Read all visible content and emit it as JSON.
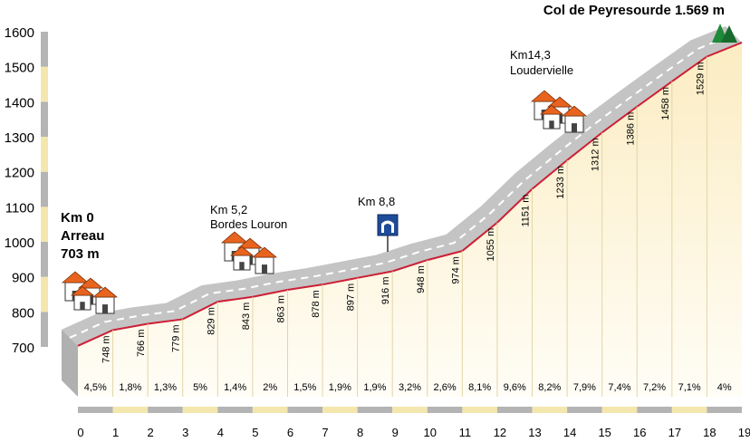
{
  "chart_data": {
    "type": "area",
    "title": "Col de Peyresourde 1.569 m",
    "ylim": [
      700,
      1600
    ],
    "yticks": [
      700,
      800,
      900,
      1000,
      1100,
      1200,
      1300,
      1400,
      1500,
      1600
    ],
    "xlim": [
      0,
      19
    ],
    "xticks": [
      0,
      1,
      2,
      3,
      4,
      5,
      6,
      7,
      8,
      9,
      10,
      11,
      12,
      13,
      14,
      15,
      16,
      17,
      18,
      19
    ],
    "profile": [
      {
        "km": 0,
        "alt": 703
      },
      {
        "km": 1,
        "alt": 748
      },
      {
        "km": 2,
        "alt": 766
      },
      {
        "km": 3,
        "alt": 779
      },
      {
        "km": 4,
        "alt": 829
      },
      {
        "km": 5,
        "alt": 843
      },
      {
        "km": 6,
        "alt": 863
      },
      {
        "km": 7,
        "alt": 878
      },
      {
        "km": 8,
        "alt": 897
      },
      {
        "km": 9,
        "alt": 916
      },
      {
        "km": 10,
        "alt": 948
      },
      {
        "km": 11,
        "alt": 974
      },
      {
        "km": 12,
        "alt": 1055
      },
      {
        "km": 13,
        "alt": 1151
      },
      {
        "km": 14,
        "alt": 1233
      },
      {
        "km": 15,
        "alt": 1312
      },
      {
        "km": 16,
        "alt": 1386
      },
      {
        "km": 17,
        "alt": 1458
      },
      {
        "km": 18,
        "alt": 1529
      },
      {
        "km": 19,
        "alt": 1569
      }
    ],
    "elevation_labels": [
      "748 m",
      "766 m",
      "779 m",
      "829 m",
      "843 m",
      "863 m",
      "878 m",
      "897 m",
      "916 m",
      "948 m",
      "974 m",
      "1055 m",
      "1151 m",
      "1233 m",
      "1312 m",
      "1386 m",
      "1458 m",
      "1529 m"
    ],
    "gradients": [
      "4,5%",
      "1,8%",
      "1,3%",
      "5%",
      "1,4%",
      "2%",
      "1,5%",
      "1,9%",
      "1,9%",
      "3,2%",
      "2,6%",
      "8,1%",
      "9,6%",
      "8,2%",
      "7,9%",
      "7,4%",
      "7,2%",
      "7,1%",
      "4%"
    ],
    "annotations": {
      "start_km": "Km 0",
      "start_name": "Arreau",
      "start_alt": "703 m",
      "bordes_km": "Km 5,2",
      "bordes_name": "Bordes Louron",
      "tunnel_km": "Km 8,8",
      "louder_km": "Km14,3",
      "louder_name": "Loudervielle",
      "summit": "Col de Peyresourde 1.569 m"
    },
    "colors": {
      "profile_line": "#cc1f36",
      "fill_top": "#fbecc2",
      "fill_bottom": "#fffdf6",
      "road": "#c4c4c4",
      "road_dark": "#b0b0b0",
      "scale_a": "#b4b4b4",
      "scale_b": "#f3e7ae",
      "roof": "#e8641e",
      "tree": "#1f8a3a",
      "sign": "#1f4c99"
    }
  }
}
